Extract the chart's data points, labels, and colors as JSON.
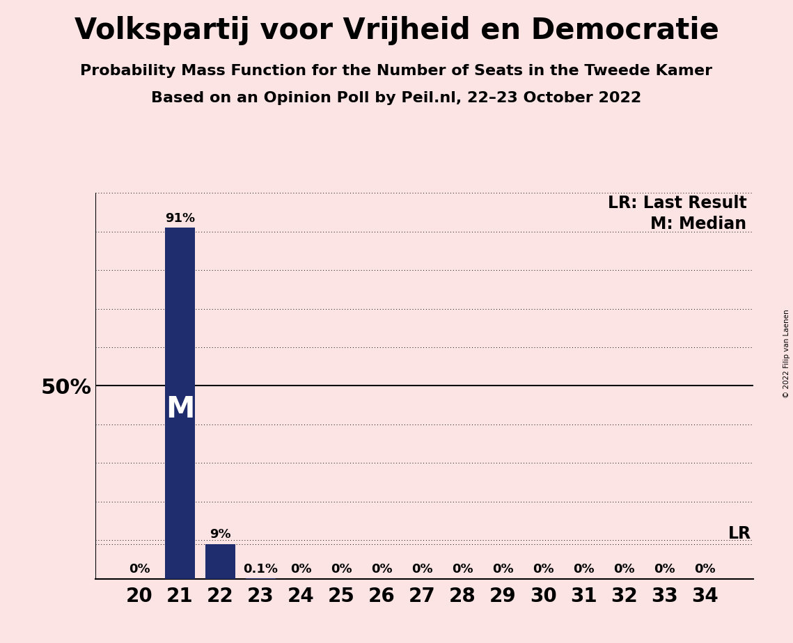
{
  "title": "Volkspartij voor Vrijheid en Democratie",
  "subtitle1": "Probability Mass Function for the Number of Seats in the Tweede Kamer",
  "subtitle2": "Based on an Opinion Poll by Peil.nl, 22–23 October 2022",
  "copyright": "© 2022 Filip van Laenen",
  "seats": [
    20,
    21,
    22,
    23,
    24,
    25,
    26,
    27,
    28,
    29,
    30,
    31,
    32,
    33,
    34
  ],
  "probabilities": [
    0.0,
    0.91,
    0.09,
    0.001,
    0.0,
    0.0,
    0.0,
    0.0,
    0.0,
    0.0,
    0.0,
    0.0,
    0.0,
    0.0,
    0.0
  ],
  "bar_labels": [
    "0%",
    "91%",
    "9%",
    "0.1%",
    "0%",
    "0%",
    "0%",
    "0%",
    "0%",
    "0%",
    "0%",
    "0%",
    "0%",
    "0%",
    "0%"
  ],
  "bar_color": "#1f2d6e",
  "background_color": "#fce4e4",
  "median_seat": 21,
  "lr_level": 0.09,
  "median_label": "M",
  "lr_label": "LR",
  "fifty_pct_label": "50%",
  "legend_lr": "LR: Last Result",
  "legend_m": "M: Median",
  "ylim": [
    0,
    1.0
  ],
  "yticks": [
    0.0,
    0.1,
    0.2,
    0.3,
    0.4,
    0.5,
    0.6,
    0.7,
    0.8,
    0.9,
    1.0
  ],
  "title_fontsize": 30,
  "subtitle_fontsize": 16,
  "bar_label_fontsize": 13,
  "axis_tick_fontsize": 20,
  "legend_fontsize": 17,
  "median_label_fontsize": 30,
  "fifty_pct_fontsize": 22
}
